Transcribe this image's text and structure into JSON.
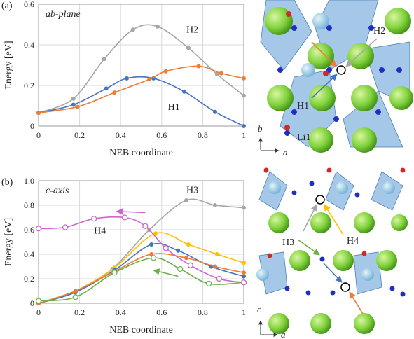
{
  "chart_data": [
    {
      "type": "line",
      "panel_label": "(a)",
      "title": "ab-plane",
      "xlabel": "NEB coordinate",
      "ylabel": "Energy [eV]",
      "xlim": [
        0,
        1
      ],
      "ylim": [
        0,
        0.6
      ],
      "xticks": [
        0,
        0.2,
        0.4,
        0.6,
        0.8,
        1
      ],
      "yticks": [
        0,
        0.2,
        0.4,
        0.6
      ],
      "grid": true,
      "series": [
        {
          "name": "H2",
          "color": "#a6a6a6",
          "markers": "filled",
          "x": [
            0,
            0.17,
            0.32,
            0.46,
            0.58,
            0.73,
            0.87,
            1
          ],
          "values": [
            0.065,
            0.135,
            0.33,
            0.475,
            0.49,
            0.385,
            0.255,
            0.15
          ]
        },
        {
          "name": "H1",
          "color": "#4472c4",
          "markers": "filled",
          "x": [
            0,
            0.17,
            0.33,
            0.43,
            0.56,
            0.71,
            0.86,
            1
          ],
          "values": [
            0.065,
            0.105,
            0.185,
            0.235,
            0.235,
            0.17,
            0.07,
            0.0
          ]
        },
        {
          "color": "#ed7d31",
          "markers": "filled",
          "x": [
            0,
            0.19,
            0.37,
            0.54,
            0.62,
            0.78,
            0.89,
            1
          ],
          "values": [
            0.065,
            0.095,
            0.165,
            0.23,
            0.27,
            0.295,
            0.26,
            0.235
          ]
        }
      ]
    },
    {
      "type": "line",
      "panel_label": "(b)",
      "title": "c-axis",
      "xlabel": "NEB coordinate",
      "ylabel": "Energy [eV]",
      "xlim": [
        0,
        1
      ],
      "ylim": [
        0,
        1
      ],
      "xticks": [
        0,
        0.2,
        0.4,
        0.6,
        0.8,
        1
      ],
      "yticks": [
        0,
        0.2,
        0.4,
        0.6,
        0.8,
        {
          "value": 1,
          "label": "1.0"
        }
      ],
      "grid": true,
      "series": [
        {
          "name": "H3",
          "color": "#a6a6a6",
          "markers": "filled",
          "x": [
            0,
            0.18,
            0.36,
            0.54,
            0.72,
            0.86,
            1
          ],
          "values": [
            0.0,
            0.09,
            0.28,
            0.6,
            0.84,
            0.8,
            0.78
          ]
        },
        {
          "color": "#ffc000",
          "markers": "filled",
          "x": [
            0,
            0.18,
            0.37,
            0.57,
            0.73,
            0.87,
            1
          ],
          "values": [
            0.0,
            0.1,
            0.29,
            0.57,
            0.48,
            0.4,
            0.33
          ]
        },
        {
          "color": "#4472c4",
          "markers": "filled",
          "x": [
            0,
            0.18,
            0.37,
            0.55,
            0.68,
            0.84,
            1
          ],
          "values": [
            0.0,
            0.09,
            0.27,
            0.48,
            0.43,
            0.3,
            0.22
          ]
        },
        {
          "color": "#ed7d31",
          "markers": "filled",
          "x": [
            0,
            0.18,
            0.37,
            0.55,
            0.72,
            0.86,
            1
          ],
          "values": [
            0.0,
            0.1,
            0.26,
            0.4,
            0.37,
            0.3,
            0.25
          ]
        },
        {
          "color": "#70ad47",
          "markers": "open",
          "x": [
            0,
            0.18,
            0.37,
            0.56,
            0.69,
            0.83,
            1
          ],
          "values": [
            0.02,
            0.05,
            0.25,
            0.37,
            0.28,
            0.16,
            0.17
          ]
        },
        {
          "name": "H4",
          "color": "#cc66cc",
          "markers": "open",
          "x": [
            0,
            0.13,
            0.27,
            0.42,
            0.52,
            0.62,
            0.74,
            0.88,
            1
          ],
          "values": [
            0.61,
            0.62,
            0.69,
            0.7,
            0.63,
            0.45,
            0.31,
            0.2,
            0.17
          ]
        }
      ]
    }
  ],
  "structures": [
    {
      "labels": [
        "H2",
        "H1",
        "Li1"
      ],
      "axes": [
        "b",
        "a"
      ]
    },
    {
      "labels": [
        "H3",
        "H4"
      ],
      "axes": [
        "c",
        "a"
      ]
    }
  ]
}
